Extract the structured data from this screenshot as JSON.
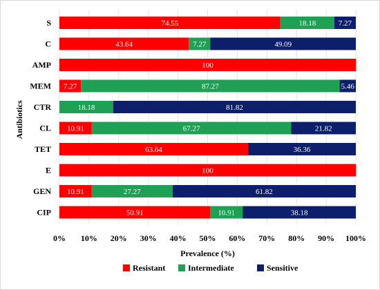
{
  "chart_data": {
    "type": "bar",
    "orientation": "horizontal",
    "stacked": true,
    "categories": [
      "S",
      "C",
      "AMP",
      "MEM",
      "CTR",
      "CL",
      "TET",
      "E",
      "GEN",
      "CIP"
    ],
    "series": [
      {
        "name": "Resistant",
        "color": "#ff0000",
        "values": [
          74.55,
          43.64,
          100,
          7.27,
          0,
          10.91,
          63.64,
          100,
          10.91,
          50.91
        ]
      },
      {
        "name": "Intermediate",
        "color": "#1fa055",
        "values": [
          18.18,
          7.27,
          0,
          87.27,
          18.18,
          67.27,
          0,
          0,
          27.27,
          10.91
        ]
      },
      {
        "name": "Sensitive",
        "color": "#0d1f6b",
        "values": [
          7.27,
          49.09,
          0,
          5.46,
          81.82,
          21.82,
          36.36,
          0,
          61.82,
          38.18
        ]
      }
    ],
    "xlabel": "Prevalence (%)",
    "ylabel": "Antibiotics",
    "xlim": [
      0,
      100
    ],
    "xticks": [
      "0%",
      "10%",
      "20%",
      "30%",
      "40%",
      "50%",
      "60%",
      "70%",
      "80%",
      "90%",
      "100%"
    ],
    "grid": true,
    "legend_position": "bottom"
  }
}
